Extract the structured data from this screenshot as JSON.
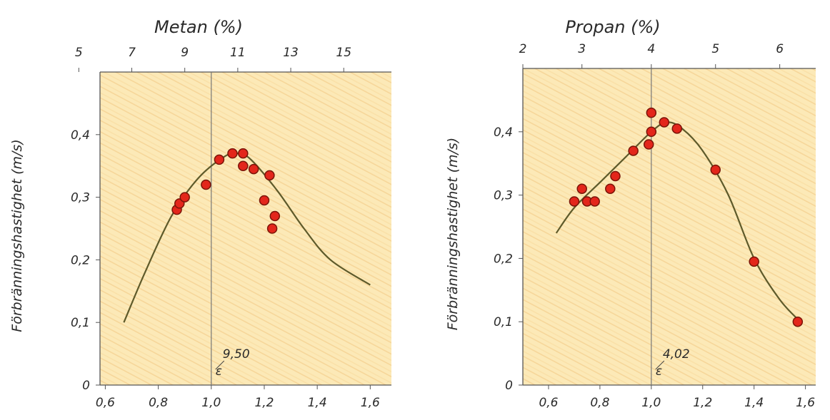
{
  "chart_data": [
    {
      "type": "scatter",
      "top_axis_label": "Metan (%)",
      "top_ticks": [
        "5",
        "7",
        "9",
        "11",
        "13",
        "15"
      ],
      "top_tick_positions": [
        0.5,
        0.7,
        0.9,
        1.1,
        1.3,
        1.5
      ],
      "ylabel": "Förbränningshastighet (m/s)",
      "x_ticks": [
        "0,6",
        "0,8",
        "1,0",
        "1,2",
        "1,4",
        "1,6"
      ],
      "x_tick_values": [
        0.6,
        0.8,
        1.0,
        1.2,
        1.4,
        1.6
      ],
      "y_ticks": [
        "0",
        "0,1",
        "0,2",
        "0,3",
        "0,4"
      ],
      "y_tick_values": [
        0,
        0.1,
        0.2,
        0.3,
        0.4
      ],
      "xlim": [
        0.58,
        1.68
      ],
      "ylim": [
        0,
        0.5
      ],
      "annotation": "9,50",
      "annotation_symbol": "ε",
      "vline_x": 1.0,
      "points": [
        {
          "x": 0.87,
          "y": 0.28
        },
        {
          "x": 0.88,
          "y": 0.29
        },
        {
          "x": 0.9,
          "y": 0.3
        },
        {
          "x": 0.98,
          "y": 0.32
        },
        {
          "x": 1.03,
          "y": 0.36
        },
        {
          "x": 1.08,
          "y": 0.37
        },
        {
          "x": 1.12,
          "y": 0.37
        },
        {
          "x": 1.12,
          "y": 0.35
        },
        {
          "x": 1.16,
          "y": 0.345
        },
        {
          "x": 1.2,
          "y": 0.295
        },
        {
          "x": 1.22,
          "y": 0.335
        },
        {
          "x": 1.24,
          "y": 0.27
        },
        {
          "x": 1.23,
          "y": 0.25
        }
      ],
      "curve": [
        {
          "x": 0.67,
          "y": 0.1
        },
        {
          "x": 0.75,
          "y": 0.18
        },
        {
          "x": 0.85,
          "y": 0.27
        },
        {
          "x": 0.95,
          "y": 0.33
        },
        {
          "x": 1.05,
          "y": 0.365
        },
        {
          "x": 1.1,
          "y": 0.37
        },
        {
          "x": 1.15,
          "y": 0.36
        },
        {
          "x": 1.25,
          "y": 0.31
        },
        {
          "x": 1.35,
          "y": 0.25
        },
        {
          "x": 1.45,
          "y": 0.2
        },
        {
          "x": 1.6,
          "y": 0.16
        }
      ]
    },
    {
      "type": "scatter",
      "top_axis_label": "Propan (%)",
      "top_ticks": [
        "2",
        "3",
        "4",
        "5",
        "6"
      ],
      "top_tick_positions": [
        0.5,
        0.73,
        1.0,
        1.25,
        1.5
      ],
      "ylabel": "Förbränningshastighet (m/s)",
      "x_ticks": [
        "0,6",
        "0,8",
        "1,0",
        "1,2",
        "1,4",
        "1,6"
      ],
      "x_tick_values": [
        0.6,
        0.8,
        1.0,
        1.2,
        1.4,
        1.6
      ],
      "y_ticks": [
        "0",
        "0,1",
        "0,2",
        "0,3",
        "0,4"
      ],
      "y_tick_values": [
        0,
        0.1,
        0.2,
        0.3,
        0.4
      ],
      "xlim": [
        0.5,
        1.64
      ],
      "ylim": [
        0,
        0.5
      ],
      "annotation": "4,02",
      "annotation_symbol": "ε",
      "vline_x": 1.0,
      "points": [
        {
          "x": 0.7,
          "y": 0.29
        },
        {
          "x": 0.73,
          "y": 0.31
        },
        {
          "x": 0.75,
          "y": 0.29
        },
        {
          "x": 0.78,
          "y": 0.29
        },
        {
          "x": 0.84,
          "y": 0.31
        },
        {
          "x": 0.86,
          "y": 0.33
        },
        {
          "x": 0.93,
          "y": 0.37
        },
        {
          "x": 0.99,
          "y": 0.38
        },
        {
          "x": 1.0,
          "y": 0.43
        },
        {
          "x": 1.0,
          "y": 0.4
        },
        {
          "x": 1.05,
          "y": 0.415
        },
        {
          "x": 1.1,
          "y": 0.405
        },
        {
          "x": 1.25,
          "y": 0.34
        },
        {
          "x": 1.4,
          "y": 0.195
        },
        {
          "x": 1.57,
          "y": 0.1
        }
      ],
      "curve": [
        {
          "x": 0.63,
          "y": 0.24
        },
        {
          "x": 0.7,
          "y": 0.28
        },
        {
          "x": 0.8,
          "y": 0.32
        },
        {
          "x": 0.9,
          "y": 0.36
        },
        {
          "x": 1.0,
          "y": 0.4
        },
        {
          "x": 1.06,
          "y": 0.415
        },
        {
          "x": 1.12,
          "y": 0.405
        },
        {
          "x": 1.2,
          "y": 0.37
        },
        {
          "x": 1.3,
          "y": 0.3
        },
        {
          "x": 1.4,
          "y": 0.2
        },
        {
          "x": 1.5,
          "y": 0.135
        },
        {
          "x": 1.58,
          "y": 0.1
        }
      ]
    }
  ]
}
